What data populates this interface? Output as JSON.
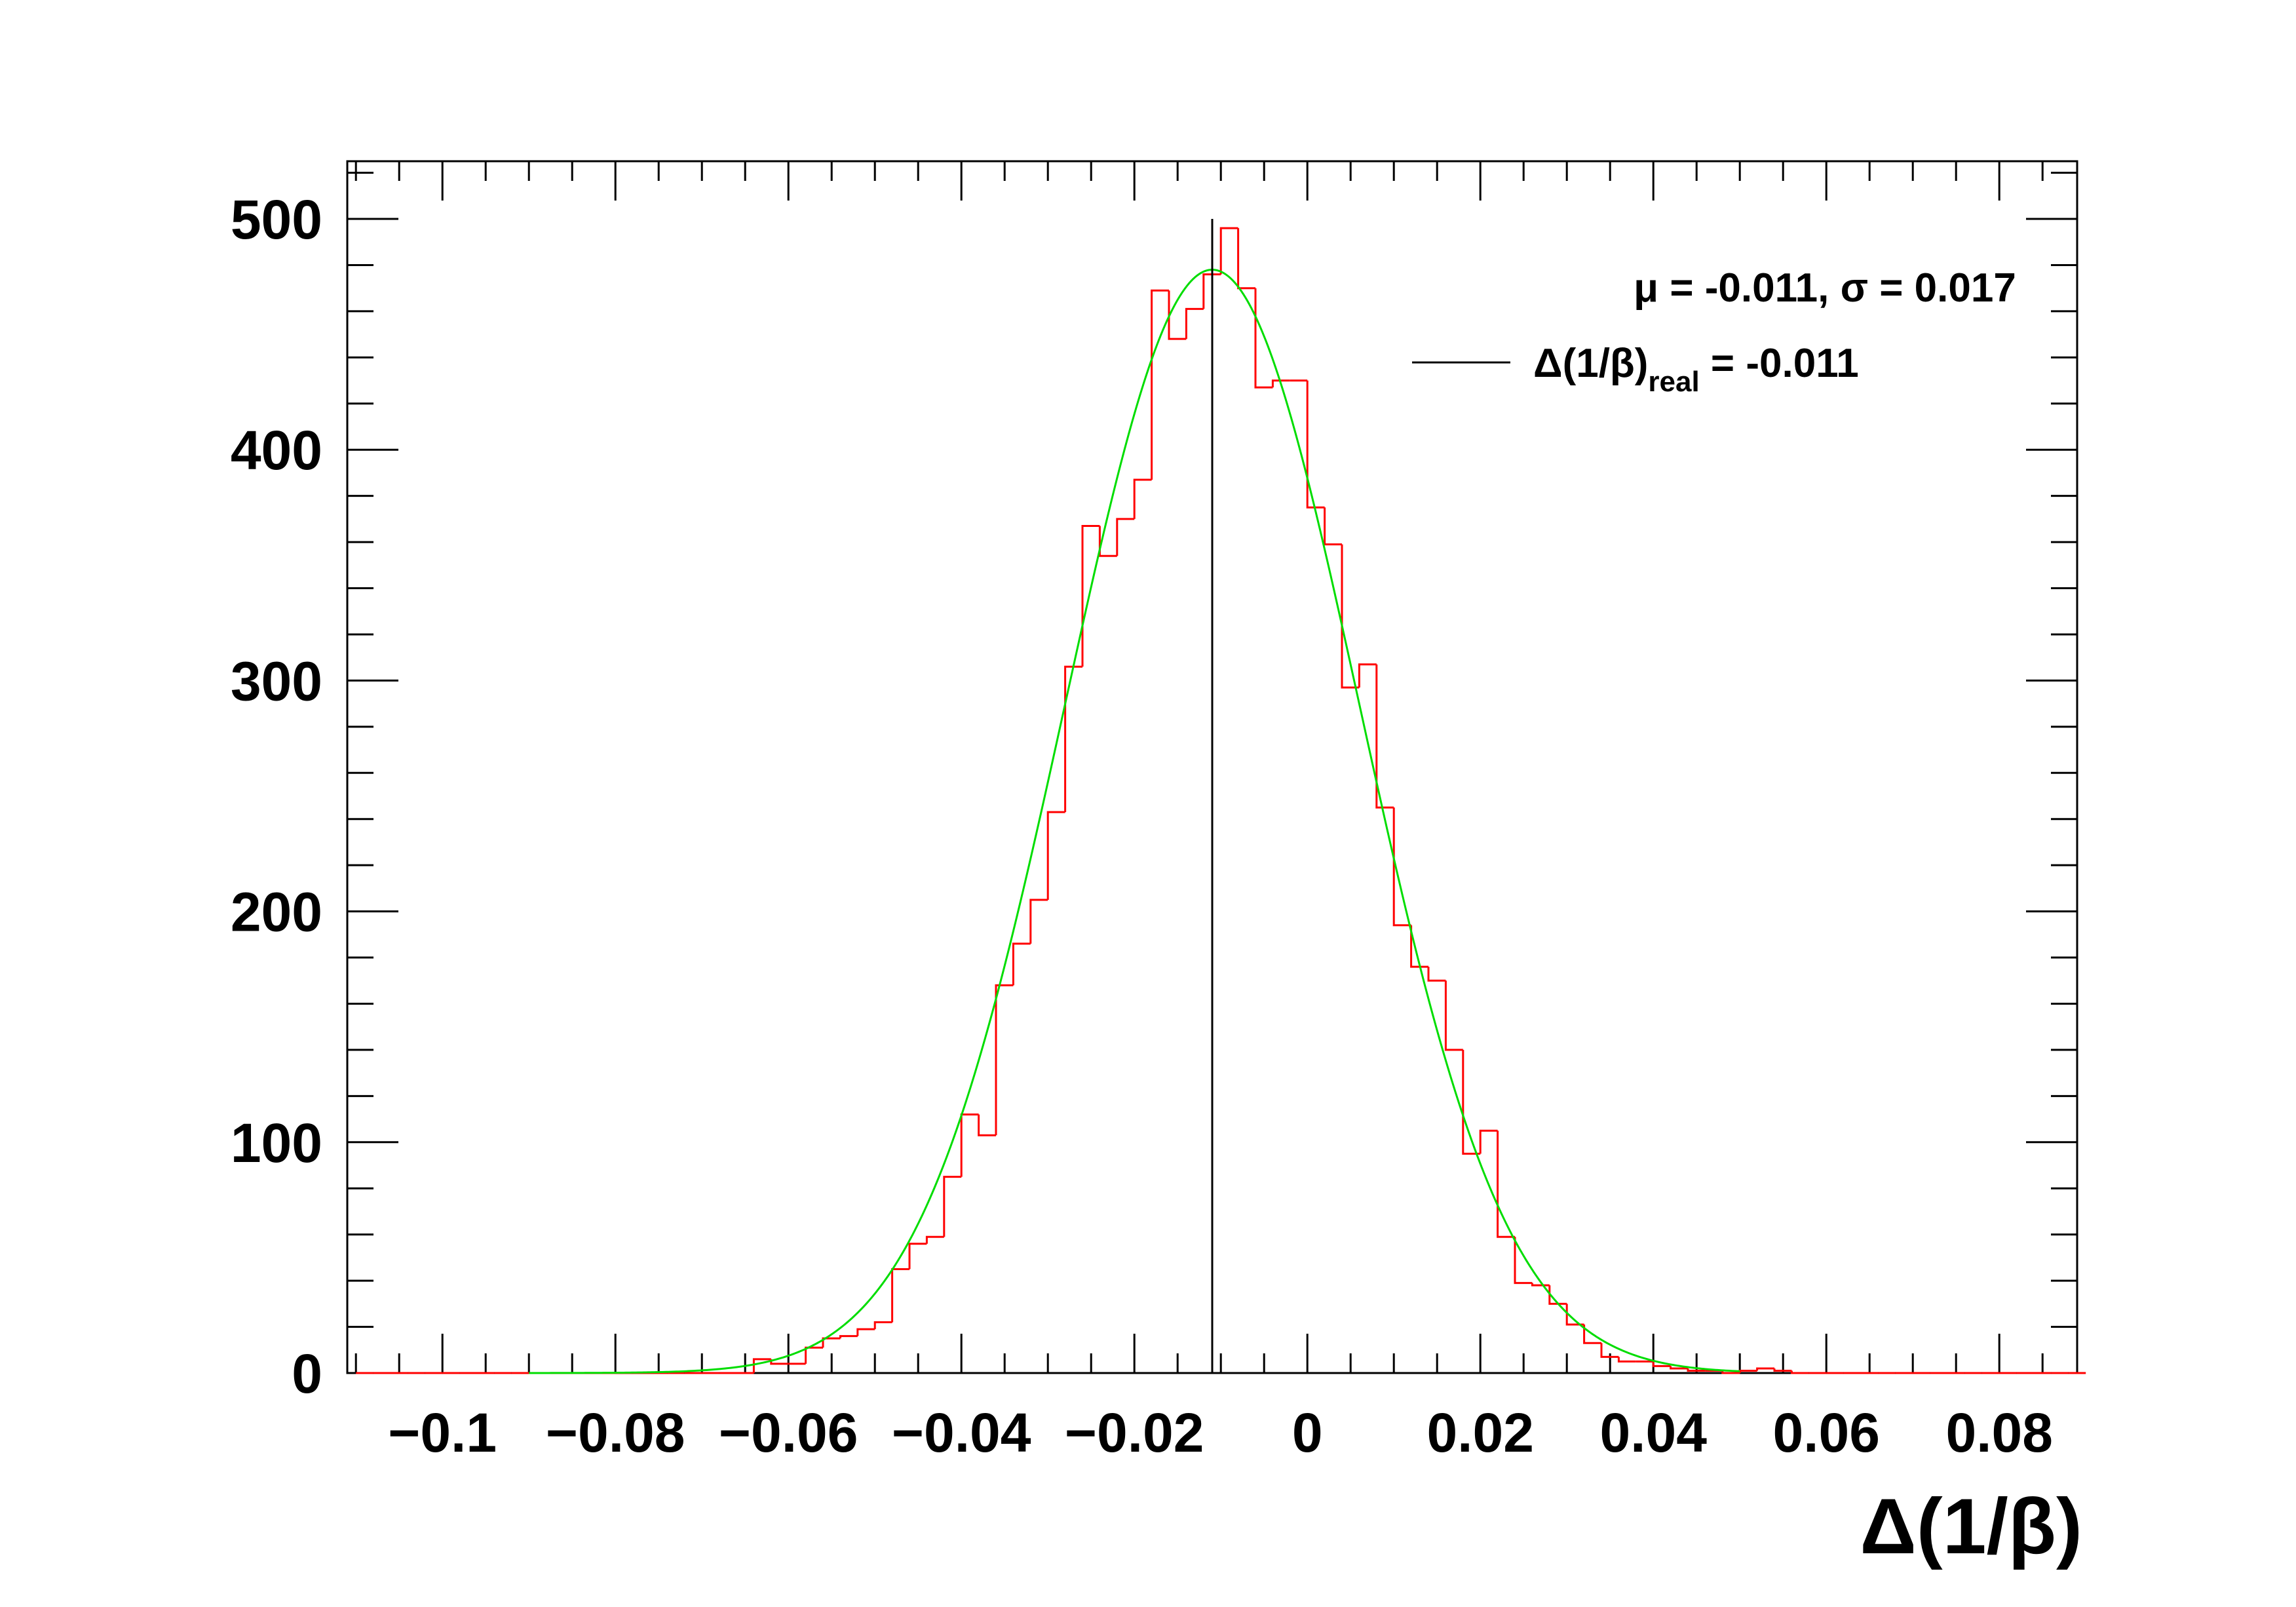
{
  "chart_data": {
    "type": "bar",
    "histogram": true,
    "xlabel": "Δ(1/β)",
    "ylabel": "",
    "title": "",
    "xlim": [
      -0.111,
      0.089
    ],
    "ylim": [
      0,
      525
    ],
    "x_ticks": [
      -0.1,
      -0.08,
      -0.06,
      -0.04,
      -0.02,
      0,
      0.02,
      0.04,
      0.06,
      0.08
    ],
    "x_tick_labels": [
      "−0.1",
      "−0.08",
      "−0.06",
      "−0.04",
      "−0.02",
      "0",
      "0.02",
      "0.04",
      "0.06",
      "0.08"
    ],
    "y_ticks": [
      0,
      100,
      200,
      300,
      400,
      500
    ],
    "y_tick_labels": [
      "0",
      "100",
      "200",
      "300",
      "400",
      "500"
    ],
    "bin_edges_start": -0.11,
    "bin_width": 0.002,
    "counts": [
      0,
      0,
      0,
      0,
      0,
      0,
      0,
      0,
      0,
      0,
      0,
      0,
      0,
      0,
      0,
      0,
      0,
      0,
      0,
      0,
      0,
      0,
      0,
      0,
      0,
      0,
      0,
      0,
      0,
      0,
      0,
      0,
      0,
      0,
      0,
      0,
      0,
      0,
      0,
      0,
      0,
      0,
      0,
      0,
      0,
      0,
      0,
      0,
      0,
      0,
      0,
      0,
      0,
      0,
      0,
      0,
      0,
      0,
      0,
      0,
      0,
      0,
      0,
      0,
      0,
      0,
      0,
      0,
      0,
      0,
      0,
      0,
      0,
      0,
      0,
      0,
      0,
      0,
      0,
      0,
      0,
      0,
      0,
      0,
      0,
      0,
      0,
      0,
      0,
      0,
      0,
      0,
      0,
      0,
      0,
      0,
      0,
      0,
      0,
      0
    ],
    "histogram_counts": [
      0,
      0,
      0,
      0,
      0,
      0,
      0,
      0,
      0,
      0,
      0,
      0,
      0,
      0,
      0,
      0,
      0,
      0,
      0,
      0,
      0,
      0,
      0,
      6,
      4,
      4,
      11,
      15,
      16,
      19,
      22,
      45,
      56,
      59,
      85,
      112,
      103,
      168,
      186,
      205,
      243,
      306,
      367,
      354,
      370,
      387,
      469,
      448,
      461,
      476,
      496,
      470,
      427,
      430,
      430,
      375,
      359,
      297,
      307,
      245,
      194,
      176,
      170,
      140,
      95,
      105,
      59,
      39,
      38,
      30,
      21,
      13,
      7,
      5,
      5,
      3,
      2,
      1,
      1,
      0,
      1,
      2,
      1,
      0,
      0,
      0,
      0,
      0,
      0,
      0,
      0,
      0,
      0,
      0,
      0,
      0,
      0,
      0,
      0,
      0
    ],
    "fit": {
      "function": "gaussian",
      "amplitude": 478,
      "mu": -0.011,
      "sigma": 0.017,
      "label": "μ = -0.011, σ = 0.017"
    },
    "reference_line": {
      "x": -0.011,
      "label_main": "Δ(1/β)",
      "label_sub": "real",
      "label_tail": " = -0.011"
    },
    "legend_placement": "top-right",
    "grid": false,
    "colors": {
      "histogram": "#ff0000",
      "fit": "#00dd00",
      "reference_line": "#000000",
      "frame": "#000000"
    }
  }
}
